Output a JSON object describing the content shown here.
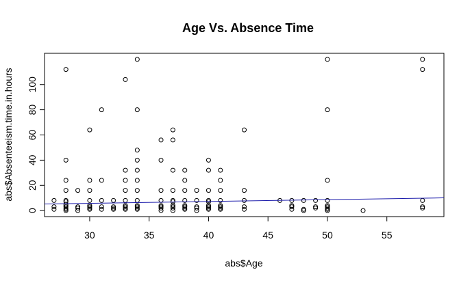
{
  "chart_data": {
    "type": "scatter",
    "title": "Age Vs. Absence Time",
    "xlabel": "abs$Age",
    "ylabel": "abs$Absenteeism.time.in.hours",
    "xlim": [
      26.2,
      59.8
    ],
    "ylim": [
      -4.8,
      124.8
    ],
    "x_ticks": [
      30,
      35,
      40,
      45,
      50,
      55
    ],
    "y_ticks": [
      0,
      20,
      40,
      60,
      80,
      100
    ],
    "x_tick_labels": [
      "30",
      "35",
      "40",
      "45",
      "50",
      "55"
    ],
    "y_tick_labels": [
      "0",
      "20",
      "40",
      "60",
      "80",
      "100"
    ],
    "grid": false,
    "points": [
      [
        27,
        1
      ],
      [
        27,
        3
      ],
      [
        27,
        8
      ],
      [
        28,
        0
      ],
      [
        28,
        1
      ],
      [
        28,
        2
      ],
      [
        28,
        3
      ],
      [
        28,
        4
      ],
      [
        28,
        5
      ],
      [
        28,
        7
      ],
      [
        28,
        8
      ],
      [
        28,
        16
      ],
      [
        28,
        24
      ],
      [
        28,
        40
      ],
      [
        28,
        112
      ],
      [
        29,
        0
      ],
      [
        29,
        2
      ],
      [
        29,
        3
      ],
      [
        29,
        16
      ],
      [
        30,
        1
      ],
      [
        30,
        2
      ],
      [
        30,
        3
      ],
      [
        30,
        4
      ],
      [
        30,
        8
      ],
      [
        30,
        16
      ],
      [
        30,
        24
      ],
      [
        30,
        64
      ],
      [
        31,
        1
      ],
      [
        31,
        3
      ],
      [
        31,
        8
      ],
      [
        31,
        24
      ],
      [
        31,
        80
      ],
      [
        32,
        1
      ],
      [
        32,
        2
      ],
      [
        32,
        3
      ],
      [
        32,
        8
      ],
      [
        33,
        1
      ],
      [
        33,
        2
      ],
      [
        33,
        3
      ],
      [
        33,
        4
      ],
      [
        33,
        8
      ],
      [
        33,
        16
      ],
      [
        33,
        24
      ],
      [
        33,
        32
      ],
      [
        33,
        104
      ],
      [
        34,
        1
      ],
      [
        34,
        2
      ],
      [
        34,
        3
      ],
      [
        34,
        4
      ],
      [
        34,
        8
      ],
      [
        34,
        16
      ],
      [
        34,
        24
      ],
      [
        34,
        32
      ],
      [
        34,
        40
      ],
      [
        34,
        48
      ],
      [
        34,
        80
      ],
      [
        34,
        120
      ],
      [
        36,
        0
      ],
      [
        36,
        2
      ],
      [
        36,
        3
      ],
      [
        36,
        4
      ],
      [
        36,
        8
      ],
      [
        36,
        16
      ],
      [
        36,
        40
      ],
      [
        36,
        56
      ],
      [
        37,
        0
      ],
      [
        37,
        2
      ],
      [
        37,
        3
      ],
      [
        37,
        4
      ],
      [
        37,
        7
      ],
      [
        37,
        8
      ],
      [
        37,
        16
      ],
      [
        37,
        32
      ],
      [
        37,
        56
      ],
      [
        37,
        64
      ],
      [
        38,
        1
      ],
      [
        38,
        2
      ],
      [
        38,
        3
      ],
      [
        38,
        4
      ],
      [
        38,
        8
      ],
      [
        38,
        16
      ],
      [
        38,
        24
      ],
      [
        38,
        32
      ],
      [
        39,
        0
      ],
      [
        39,
        2
      ],
      [
        39,
        3
      ],
      [
        39,
        8
      ],
      [
        39,
        16
      ],
      [
        40,
        1
      ],
      [
        40,
        2
      ],
      [
        40,
        3
      ],
      [
        40,
        4
      ],
      [
        40,
        7
      ],
      [
        40,
        8
      ],
      [
        40,
        16
      ],
      [
        40,
        32
      ],
      [
        40,
        40
      ],
      [
        41,
        1
      ],
      [
        41,
        2
      ],
      [
        41,
        3
      ],
      [
        41,
        4
      ],
      [
        41,
        8
      ],
      [
        41,
        16
      ],
      [
        41,
        24
      ],
      [
        41,
        32
      ],
      [
        43,
        1
      ],
      [
        43,
        3
      ],
      [
        43,
        8
      ],
      [
        43,
        16
      ],
      [
        43,
        64
      ],
      [
        46,
        8
      ],
      [
        47,
        1
      ],
      [
        47,
        3
      ],
      [
        47,
        4
      ],
      [
        47,
        8
      ],
      [
        48,
        0
      ],
      [
        48,
        1
      ],
      [
        48,
        8
      ],
      [
        49,
        2
      ],
      [
        49,
        3
      ],
      [
        49,
        8
      ],
      [
        50,
        0
      ],
      [
        50,
        1
      ],
      [
        50,
        2
      ],
      [
        50,
        3
      ],
      [
        50,
        4
      ],
      [
        50,
        8
      ],
      [
        50,
        24
      ],
      [
        50,
        80
      ],
      [
        50,
        120
      ],
      [
        53,
        0
      ],
      [
        58,
        2
      ],
      [
        58,
        3
      ],
      [
        58,
        8
      ],
      [
        58,
        112
      ],
      [
        58,
        120
      ]
    ],
    "fit_line": {
      "x": [
        26.2,
        59.8
      ],
      "y": [
        5.2,
        10.1
      ],
      "color": "#1a1aaa"
    }
  }
}
